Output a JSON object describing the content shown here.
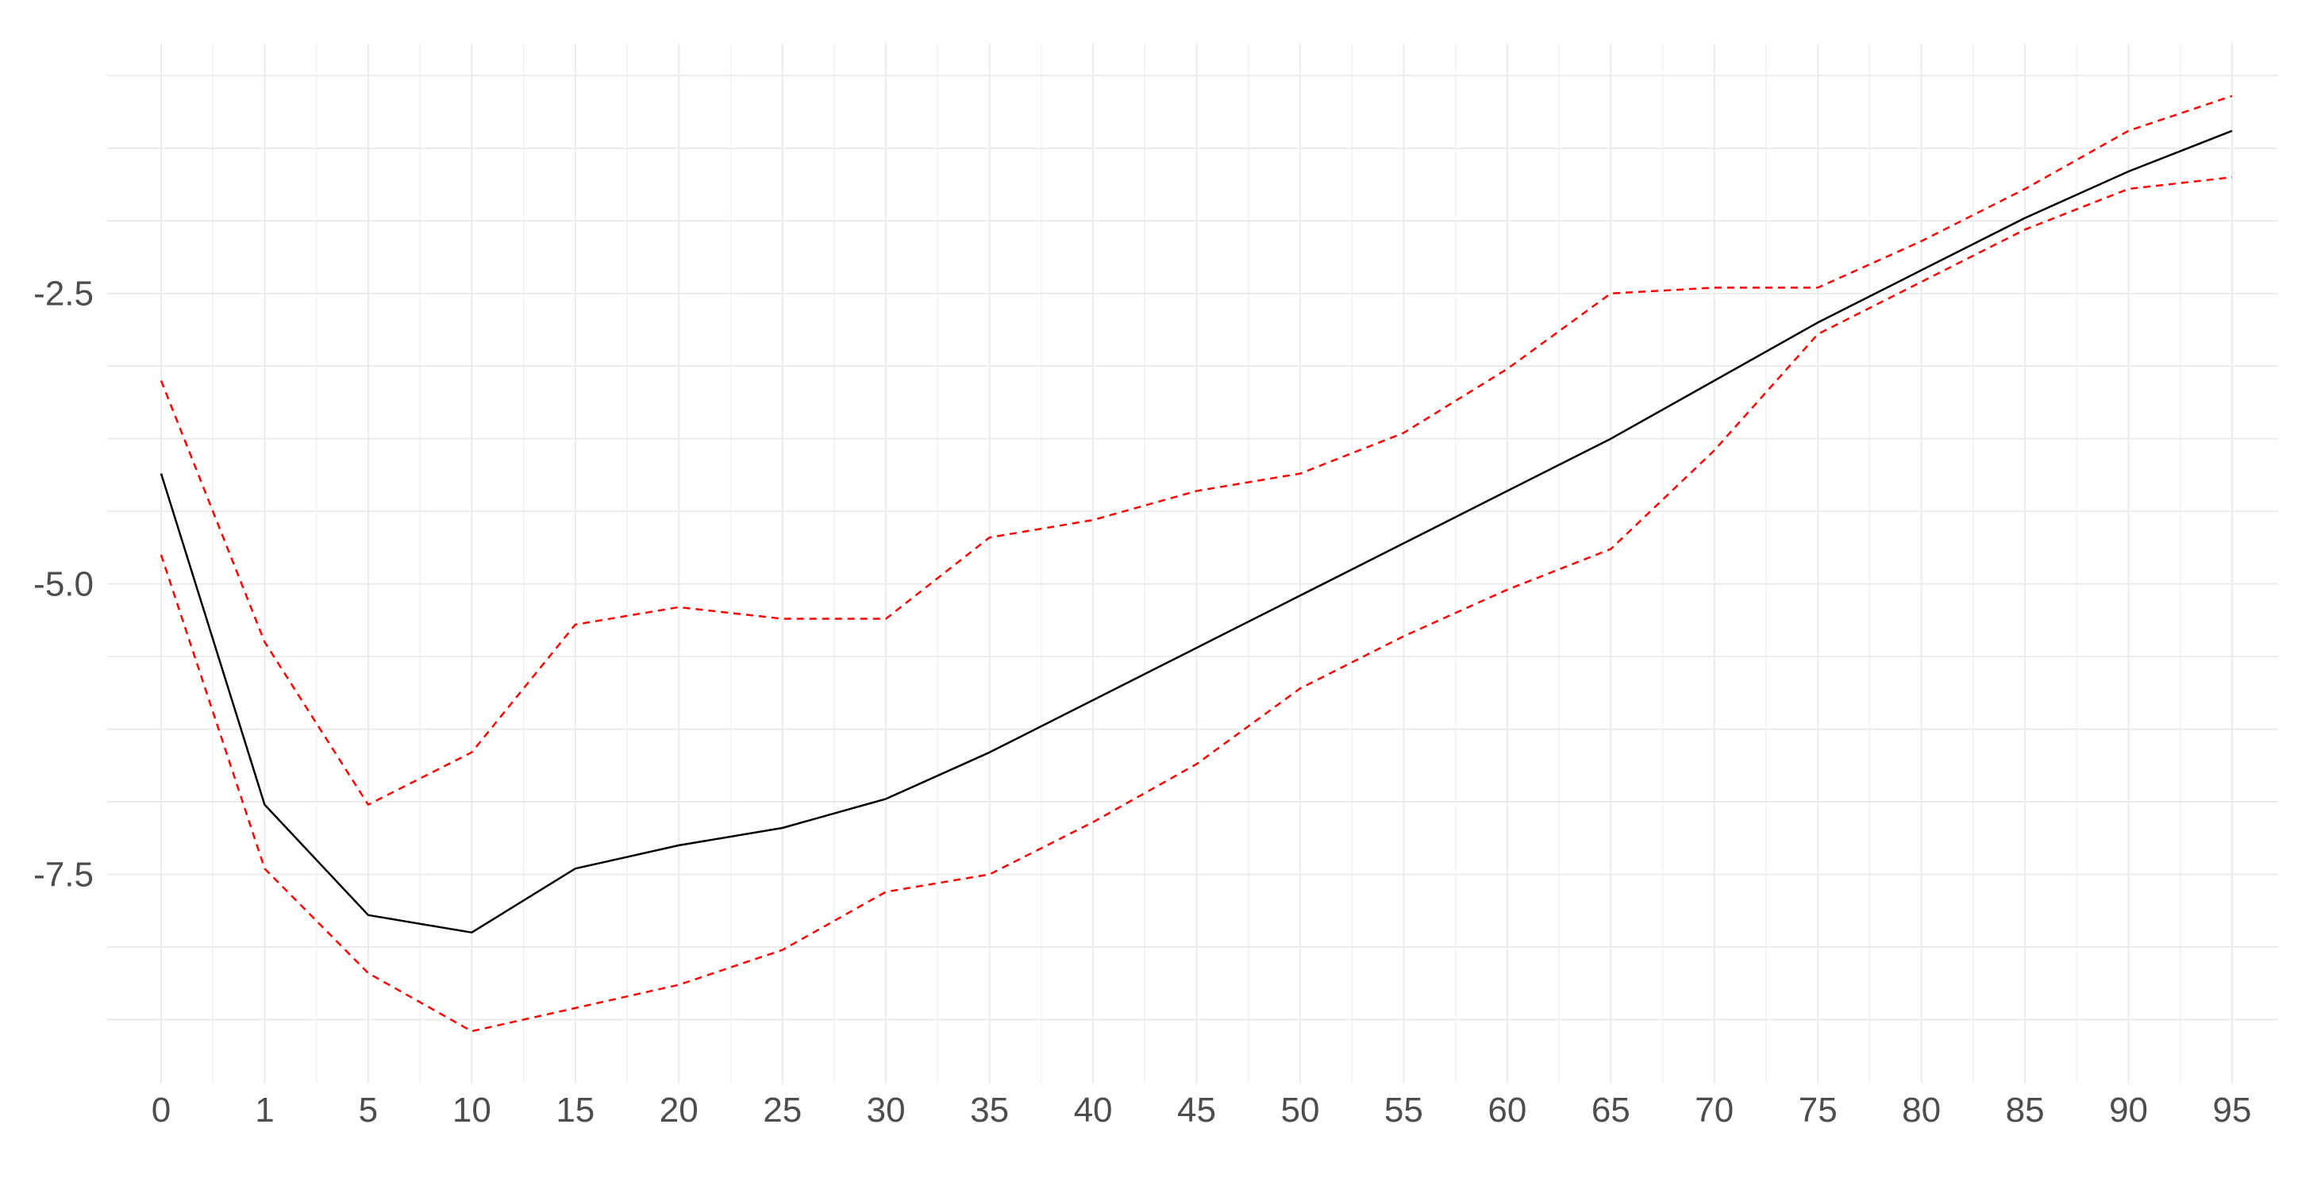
{
  "chart_data": {
    "type": "line",
    "x": [
      "0",
      "1",
      "5",
      "10",
      "15",
      "20",
      "25",
      "30",
      "35",
      "40",
      "45",
      "50",
      "55",
      "60",
      "65",
      "70",
      "75",
      "80",
      "85",
      "90",
      "95"
    ],
    "y_ticks": [
      -2.5,
      -5.0,
      -7.5
    ],
    "y_tick_labels": [
      "-2.5",
      "-5.0",
      "-7.5"
    ],
    "ylim": [
      -9.3,
      -0.35
    ],
    "grid": true,
    "legend": "none",
    "series": [
      {
        "key": "estimate",
        "color": "#000000",
        "dash": "solid",
        "values": [
          -4.05,
          -6.9,
          -7.85,
          -8.0,
          -7.45,
          -7.25,
          -7.1,
          -6.85,
          -6.45,
          -6.0,
          -5.55,
          -5.1,
          -4.65,
          -4.2,
          -3.75,
          -3.25,
          -2.75,
          -2.3,
          -1.85,
          -1.45,
          -1.1
        ]
      },
      {
        "key": "upper",
        "color": "#ff0000",
        "dash": "dashed",
        "values": [
          -3.25,
          -5.5,
          -6.9,
          -6.45,
          -5.35,
          -5.2,
          -5.3,
          -5.3,
          -4.6,
          -4.45,
          -4.2,
          -4.05,
          -3.7,
          -3.15,
          -2.5,
          -2.45,
          -2.45,
          -2.05,
          -1.6,
          -1.1,
          -0.8
        ]
      },
      {
        "key": "lower",
        "color": "#ff0000",
        "dash": "dashed",
        "values": [
          -4.75,
          -7.45,
          -8.35,
          -8.85,
          -8.65,
          -8.45,
          -8.15,
          -7.65,
          -7.5,
          -7.05,
          -6.55,
          -5.9,
          -5.45,
          -5.05,
          -4.7,
          -3.85,
          -2.85,
          -2.4,
          -1.95,
          -1.6,
          -1.5
        ]
      }
    ]
  }
}
